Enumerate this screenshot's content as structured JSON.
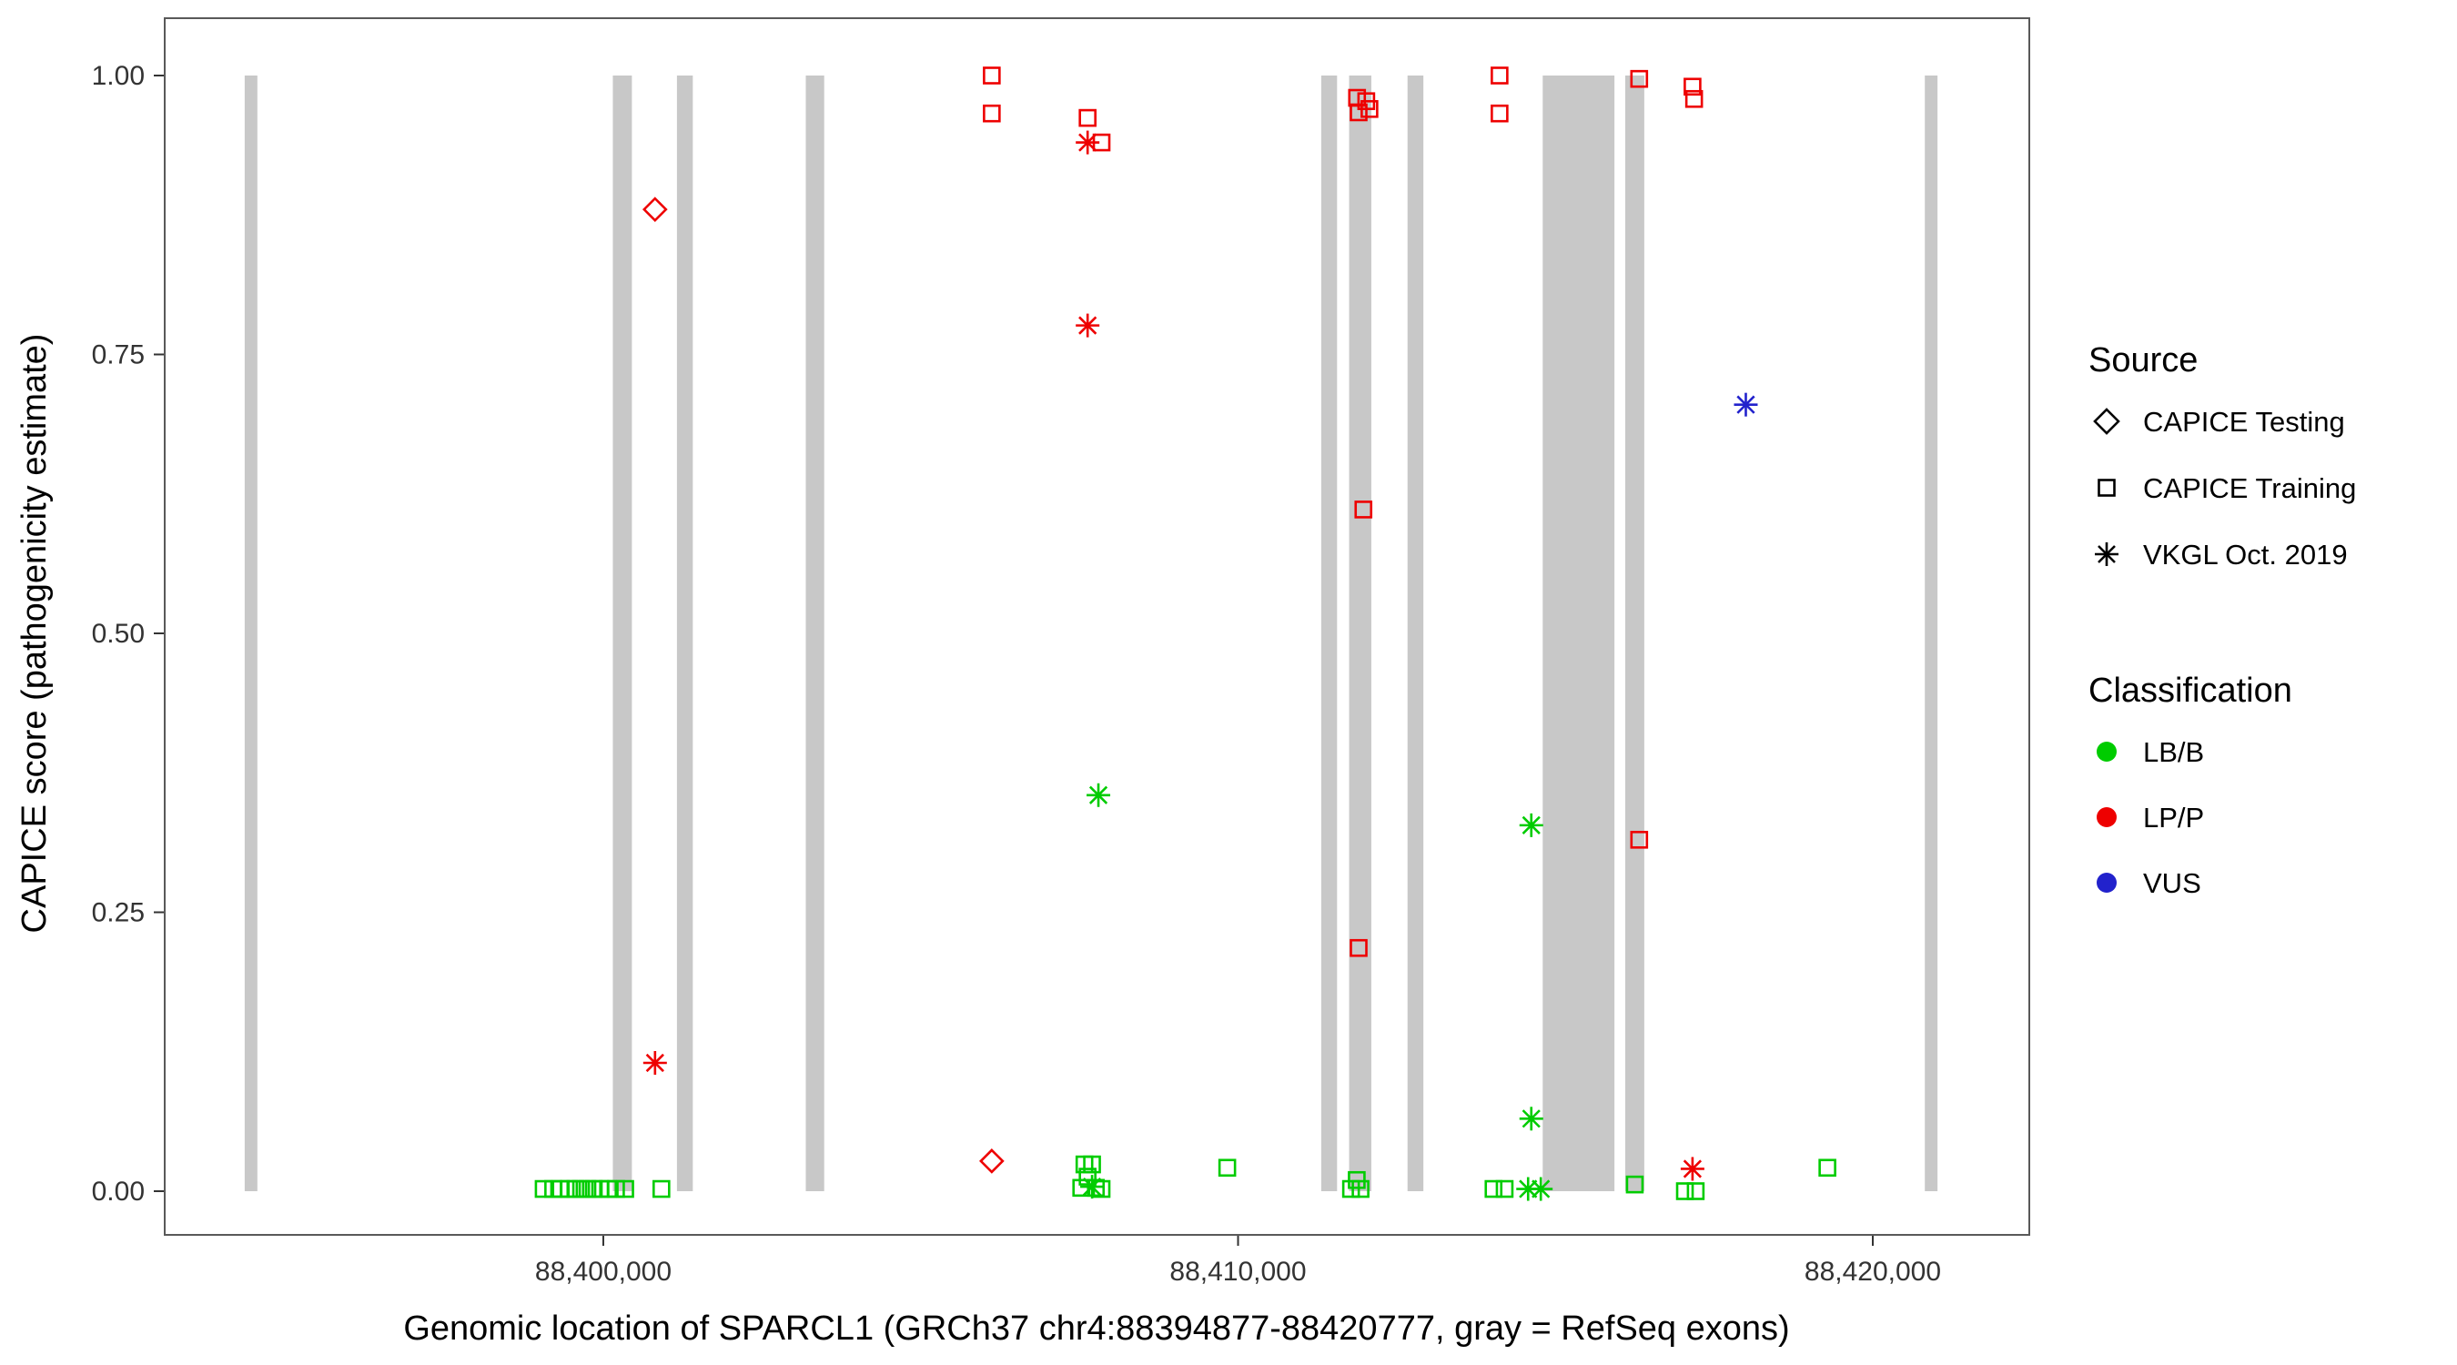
{
  "chart_data": {
    "type": "scatter",
    "title": "",
    "xlabel": "Genomic location of SPARCL1 (GRCh37 chr4:88394877-88420777, gray = RefSeq exons)",
    "ylabel": "CAPICE score (pathogenicity estimate)",
    "x_domain": [
      88393090,
      88422466
    ],
    "y_domain": [
      0,
      1
    ],
    "grid": false,
    "x_ticks": [
      {
        "value": 88400000,
        "label": "88,400,000"
      },
      {
        "value": 88410000,
        "label": "88,410,000"
      },
      {
        "value": 88420000,
        "label": "88,420,000"
      }
    ],
    "y_ticks": [
      {
        "value": 0.0,
        "label": "0.00"
      },
      {
        "value": 0.25,
        "label": "0.25"
      },
      {
        "value": 0.5,
        "label": "0.50"
      },
      {
        "value": 0.75,
        "label": "0.75"
      },
      {
        "value": 1.0,
        "label": "1.00"
      }
    ],
    "exon_color": "#c8c8c8",
    "exons": [
      {
        "start": 88394350,
        "end": 88394550
      },
      {
        "start": 88400150,
        "end": 88400450
      },
      {
        "start": 88401160,
        "end": 88401410
      },
      {
        "start": 88403190,
        "end": 88403480
      },
      {
        "start": 88411310,
        "end": 88411560
      },
      {
        "start": 88411750,
        "end": 88412100
      },
      {
        "start": 88412670,
        "end": 88412920
      },
      {
        "start": 88414800,
        "end": 88415930
      },
      {
        "start": 88416100,
        "end": 88416400
      },
      {
        "start": 88420820,
        "end": 88421020
      }
    ],
    "colors": {
      "LB/B": "#00cc00",
      "LP/P": "#ee0000",
      "VUS": "#2222cc"
    },
    "shapes": {
      "CAPICE Testing": "diamond",
      "CAPICE Training": "square",
      "VKGL Oct. 2019": "asterisk"
    },
    "points": [
      {
        "x": 88400815,
        "y": 0.88,
        "source": "CAPICE Testing",
        "class": "LP/P"
      },
      {
        "x": 88406120,
        "y": 0.027,
        "source": "CAPICE Testing",
        "class": "LP/P"
      },
      {
        "x": 88406120,
        "y": 1.0,
        "source": "CAPICE Training",
        "class": "LP/P"
      },
      {
        "x": 88406120,
        "y": 0.966,
        "source": "CAPICE Training",
        "class": "LP/P"
      },
      {
        "x": 88407630,
        "y": 0.962,
        "source": "CAPICE Training",
        "class": "LP/P"
      },
      {
        "x": 88407850,
        "y": 0.94,
        "source": "CAPICE Training",
        "class": "LP/P"
      },
      {
        "x": 88411875,
        "y": 0.98,
        "source": "CAPICE Training",
        "class": "LP/P"
      },
      {
        "x": 88412020,
        "y": 0.977,
        "source": "CAPICE Training",
        "class": "LP/P"
      },
      {
        "x": 88411900,
        "y": 0.967,
        "source": "CAPICE Training",
        "class": "LP/P"
      },
      {
        "x": 88412070,
        "y": 0.97,
        "source": "CAPICE Training",
        "class": "LP/P"
      },
      {
        "x": 88411975,
        "y": 0.611,
        "source": "CAPICE Training",
        "class": "LP/P"
      },
      {
        "x": 88411900,
        "y": 0.218,
        "source": "CAPICE Training",
        "class": "LP/P"
      },
      {
        "x": 88414120,
        "y": 1.0,
        "source": "CAPICE Training",
        "class": "LP/P"
      },
      {
        "x": 88414120,
        "y": 0.966,
        "source": "CAPICE Training",
        "class": "LP/P"
      },
      {
        "x": 88416320,
        "y": 0.997,
        "source": "CAPICE Training",
        "class": "LP/P"
      },
      {
        "x": 88416320,
        "y": 0.315,
        "source": "CAPICE Training",
        "class": "LP/P"
      },
      {
        "x": 88417160,
        "y": 0.99,
        "source": "CAPICE Training",
        "class": "LP/P"
      },
      {
        "x": 88417185,
        "y": 0.979,
        "source": "CAPICE Training",
        "class": "LP/P"
      },
      {
        "x": 88400815,
        "y": 0.115,
        "source": "VKGL Oct. 2019",
        "class": "LP/P"
      },
      {
        "x": 88407630,
        "y": 0.94,
        "source": "VKGL Oct. 2019",
        "class": "LP/P"
      },
      {
        "x": 88407630,
        "y": 0.776,
        "source": "VKGL Oct. 2019",
        "class": "LP/P"
      },
      {
        "x": 88417160,
        "y": 0.02,
        "source": "VKGL Oct. 2019",
        "class": "LP/P"
      },
      {
        "x": 88418000,
        "y": 0.705,
        "source": "VKGL Oct. 2019",
        "class": "VUS"
      },
      {
        "x": 88407800,
        "y": 0.355,
        "source": "VKGL Oct. 2019",
        "class": "LB/B"
      },
      {
        "x": 88414620,
        "y": 0.328,
        "source": "VKGL Oct. 2019",
        "class": "LB/B"
      },
      {
        "x": 88414620,
        "y": 0.065,
        "source": "VKGL Oct. 2019",
        "class": "LB/B"
      },
      {
        "x": 88414570,
        "y": 0.002,
        "source": "VKGL Oct. 2019",
        "class": "LB/B"
      },
      {
        "x": 88414770,
        "y": 0.002,
        "source": "VKGL Oct. 2019",
        "class": "LB/B"
      },
      {
        "x": 88407700,
        "y": 0.004,
        "source": "VKGL Oct. 2019",
        "class": "LB/B"
      },
      {
        "x": 88399060,
        "y": 0.002,
        "source": "CAPICE Training",
        "class": "LB/B"
      },
      {
        "x": 88399210,
        "y": 0.002,
        "source": "CAPICE Training",
        "class": "LB/B"
      },
      {
        "x": 88399330,
        "y": 0.002,
        "source": "CAPICE Training",
        "class": "LB/B"
      },
      {
        "x": 88399460,
        "y": 0.002,
        "source": "CAPICE Training",
        "class": "LB/B"
      },
      {
        "x": 88399560,
        "y": 0.002,
        "source": "CAPICE Training",
        "class": "LB/B"
      },
      {
        "x": 88399650,
        "y": 0.002,
        "source": "CAPICE Training",
        "class": "LB/B"
      },
      {
        "x": 88399750,
        "y": 0.002,
        "source": "CAPICE Training",
        "class": "LB/B"
      },
      {
        "x": 88399850,
        "y": 0.002,
        "source": "CAPICE Training",
        "class": "LB/B"
      },
      {
        "x": 88399950,
        "y": 0.002,
        "source": "CAPICE Training",
        "class": "LB/B"
      },
      {
        "x": 88400075,
        "y": 0.002,
        "source": "CAPICE Training",
        "class": "LB/B"
      },
      {
        "x": 88400200,
        "y": 0.002,
        "source": "CAPICE Training",
        "class": "LB/B"
      },
      {
        "x": 88400345,
        "y": 0.002,
        "source": "CAPICE Training",
        "class": "LB/B"
      },
      {
        "x": 88400915,
        "y": 0.002,
        "source": "CAPICE Training",
        "class": "LB/B"
      },
      {
        "x": 88407580,
        "y": 0.024,
        "source": "CAPICE Training",
        "class": "LB/B"
      },
      {
        "x": 88407700,
        "y": 0.024,
        "source": "CAPICE Training",
        "class": "LB/B"
      },
      {
        "x": 88407630,
        "y": 0.013,
        "source": "CAPICE Training",
        "class": "LB/B"
      },
      {
        "x": 88407530,
        "y": 0.003,
        "source": "CAPICE Training",
        "class": "LB/B"
      },
      {
        "x": 88407760,
        "y": 0.003,
        "source": "CAPICE Training",
        "class": "LB/B"
      },
      {
        "x": 88407850,
        "y": 0.002,
        "source": "CAPICE Training",
        "class": "LB/B"
      },
      {
        "x": 88409830,
        "y": 0.021,
        "source": "CAPICE Training",
        "class": "LB/B"
      },
      {
        "x": 88411780,
        "y": 0.002,
        "source": "CAPICE Training",
        "class": "LB/B"
      },
      {
        "x": 88411930,
        "y": 0.002,
        "source": "CAPICE Training",
        "class": "LB/B"
      },
      {
        "x": 88411870,
        "y": 0.01,
        "source": "CAPICE Training",
        "class": "LB/B"
      },
      {
        "x": 88414025,
        "y": 0.002,
        "source": "CAPICE Training",
        "class": "LB/B"
      },
      {
        "x": 88414200,
        "y": 0.002,
        "source": "CAPICE Training",
        "class": "LB/B"
      },
      {
        "x": 88416250,
        "y": 0.006,
        "source": "CAPICE Training",
        "class": "LB/B"
      },
      {
        "x": 88417040,
        "y": 0.0,
        "source": "CAPICE Training",
        "class": "LB/B"
      },
      {
        "x": 88417210,
        "y": 0.0,
        "source": "CAPICE Training",
        "class": "LB/B"
      },
      {
        "x": 88419285,
        "y": 0.021,
        "source": "CAPICE Training",
        "class": "LB/B"
      }
    ]
  },
  "legend": {
    "source_title": "Source",
    "source_items": [
      {
        "label": "CAPICE Testing",
        "shape": "diamond"
      },
      {
        "label": "CAPICE Training",
        "shape": "square"
      },
      {
        "label": "VKGL Oct. 2019",
        "shape": "asterisk"
      }
    ],
    "class_title": "Classification",
    "class_items": [
      {
        "label": "LB/B",
        "color": "#00cc00"
      },
      {
        "label": "LP/P",
        "color": "#ee0000"
      },
      {
        "label": "VUS",
        "color": "#2222cc"
      }
    ]
  }
}
